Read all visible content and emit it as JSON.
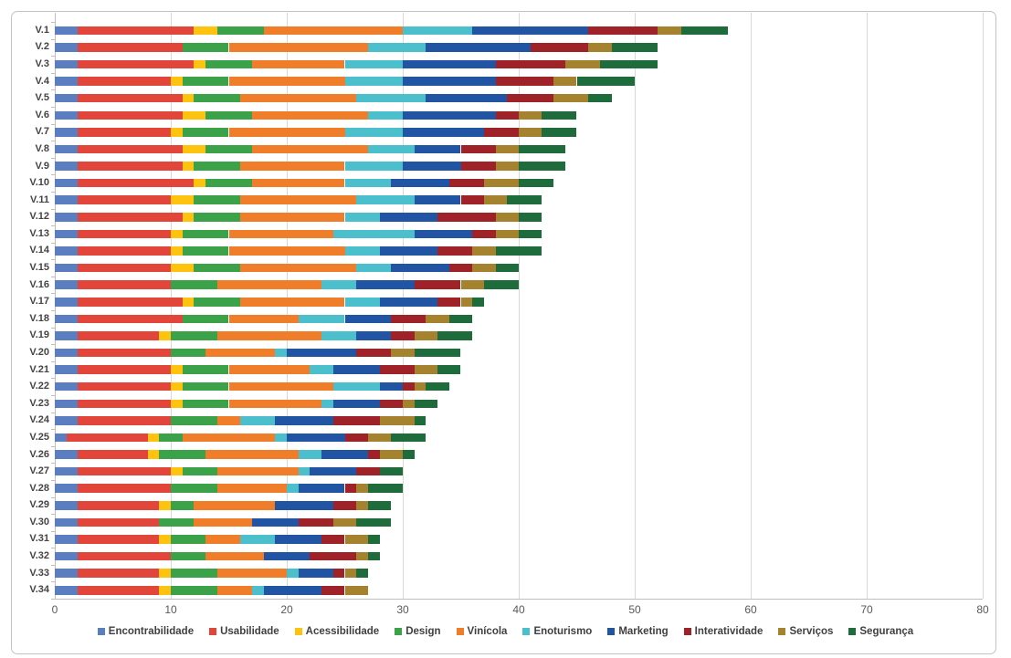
{
  "figure": {
    "background": "#ffffff",
    "frame_border_color": "#c3c3c3"
  },
  "axes": {
    "grid_color": "#d8d8d8",
    "axis_color": "#bfbfbf",
    "x_tick_label_color": "#595959",
    "category_label_color": "#444444"
  },
  "chart_data": {
    "type": "bar",
    "orientation": "horizontal",
    "stacked": true,
    "title": "",
    "xlabel": "",
    "ylabel": "",
    "xlim": [
      0,
      80
    ],
    "x_ticks": [
      0,
      10,
      20,
      30,
      40,
      50,
      60,
      70,
      80
    ],
    "grid": "vertical",
    "legend_position": "bottom",
    "categories": [
      "V.1",
      "V.2",
      "V.3",
      "V.4",
      "V.5",
      "V.6",
      "V.7",
      "V.8",
      "V.9",
      "V.10",
      "V.11",
      "V.12",
      "V.13",
      "V.14",
      "V.15",
      "V.16",
      "V.17",
      "V.18",
      "V.19",
      "V.20",
      "V.21",
      "V.22",
      "V.23",
      "V.24",
      "V.25",
      "V.26",
      "V.27",
      "V.28",
      "V.29",
      "V.30",
      "V.31",
      "V.32",
      "V.33",
      "V.34"
    ],
    "series": [
      {
        "name": "Encontrabilidade",
        "color": "#5b7ec0",
        "values": [
          2,
          2,
          2,
          2,
          2,
          2,
          2,
          2,
          2,
          2,
          2,
          2,
          2,
          2,
          2,
          2,
          2,
          2,
          2,
          2,
          2,
          2,
          2,
          2,
          1,
          2,
          2,
          2,
          2,
          2,
          2,
          2,
          2,
          2
        ]
      },
      {
        "name": "Usabilidade",
        "color": "#e2453a",
        "values": [
          10,
          9,
          10,
          8,
          9,
          9,
          8,
          9,
          9,
          10,
          8,
          9,
          8,
          8,
          8,
          8,
          9,
          9,
          7,
          8,
          8,
          8,
          8,
          8,
          7,
          6,
          8,
          8,
          7,
          7,
          7,
          8,
          7,
          7
        ]
      },
      {
        "name": "Acessibilidade",
        "color": "#fec30e",
        "values": [
          2,
          0,
          1,
          1,
          1,
          2,
          1,
          2,
          1,
          1,
          2,
          1,
          1,
          1,
          2,
          0,
          1,
          0,
          1,
          0,
          1,
          1,
          1,
          0,
          1,
          1,
          1,
          0,
          1,
          0,
          1,
          0,
          1,
          1
        ]
      },
      {
        "name": "Design",
        "color": "#3ca24a",
        "values": [
          4,
          4,
          4,
          4,
          4,
          4,
          4,
          4,
          4,
          4,
          4,
          4,
          4,
          4,
          4,
          4,
          4,
          4,
          4,
          3,
          4,
          4,
          4,
          4,
          2,
          4,
          3,
          4,
          2,
          3,
          3,
          3,
          4,
          4
        ]
      },
      {
        "name": "Vinícola",
        "color": "#f07d2a",
        "values": [
          12,
          12,
          8,
          10,
          10,
          10,
          10,
          10,
          9,
          8,
          10,
          9,
          9,
          10,
          10,
          9,
          9,
          6,
          9,
          6,
          7,
          9,
          8,
          2,
          8,
          8,
          7,
          6,
          7,
          5,
          3,
          5,
          6,
          3
        ]
      },
      {
        "name": "Enoturismo",
        "color": "#4bbfcc",
        "values": [
          6,
          5,
          5,
          5,
          6,
          3,
          5,
          4,
          5,
          4,
          5,
          3,
          7,
          3,
          3,
          3,
          3,
          4,
          3,
          1,
          2,
          4,
          1,
          3,
          1,
          2,
          1,
          1,
          0,
          0,
          3,
          0,
          1,
          1
        ]
      },
      {
        "name": "Marketing",
        "color": "#2254a4",
        "values": [
          10,
          9,
          8,
          8,
          7,
          8,
          7,
          4,
          5,
          5,
          4,
          5,
          5,
          5,
          5,
          5,
          5,
          4,
          3,
          6,
          4,
          2,
          4,
          5,
          5,
          4,
          4,
          4,
          5,
          4,
          4,
          4,
          3,
          5
        ]
      },
      {
        "name": "Interatividade",
        "color": "#9e2227",
        "values": [
          6,
          5,
          6,
          5,
          4,
          2,
          3,
          3,
          3,
          3,
          2,
          5,
          2,
          3,
          2,
          4,
          2,
          3,
          2,
          3,
          3,
          1,
          2,
          4,
          2,
          1,
          2,
          1,
          2,
          3,
          2,
          4,
          1,
          2
        ]
      },
      {
        "name": "Serviços",
        "color": "#a5822e",
        "values": [
          2,
          2,
          3,
          2,
          3,
          2,
          2,
          2,
          2,
          3,
          2,
          2,
          2,
          2,
          2,
          2,
          1,
          2,
          2,
          2,
          2,
          1,
          1,
          3,
          2,
          2,
          0,
          1,
          1,
          2,
          2,
          1,
          1,
          2
        ]
      },
      {
        "name": "Segurança",
        "color": "#1e6b3c",
        "values": [
          4,
          4,
          5,
          5,
          2,
          3,
          3,
          4,
          4,
          3,
          3,
          2,
          2,
          4,
          2,
          3,
          1,
          2,
          3,
          4,
          2,
          2,
          2,
          1,
          3,
          1,
          2,
          3,
          2,
          3,
          1,
          1,
          1,
          0
        ]
      }
    ]
  }
}
